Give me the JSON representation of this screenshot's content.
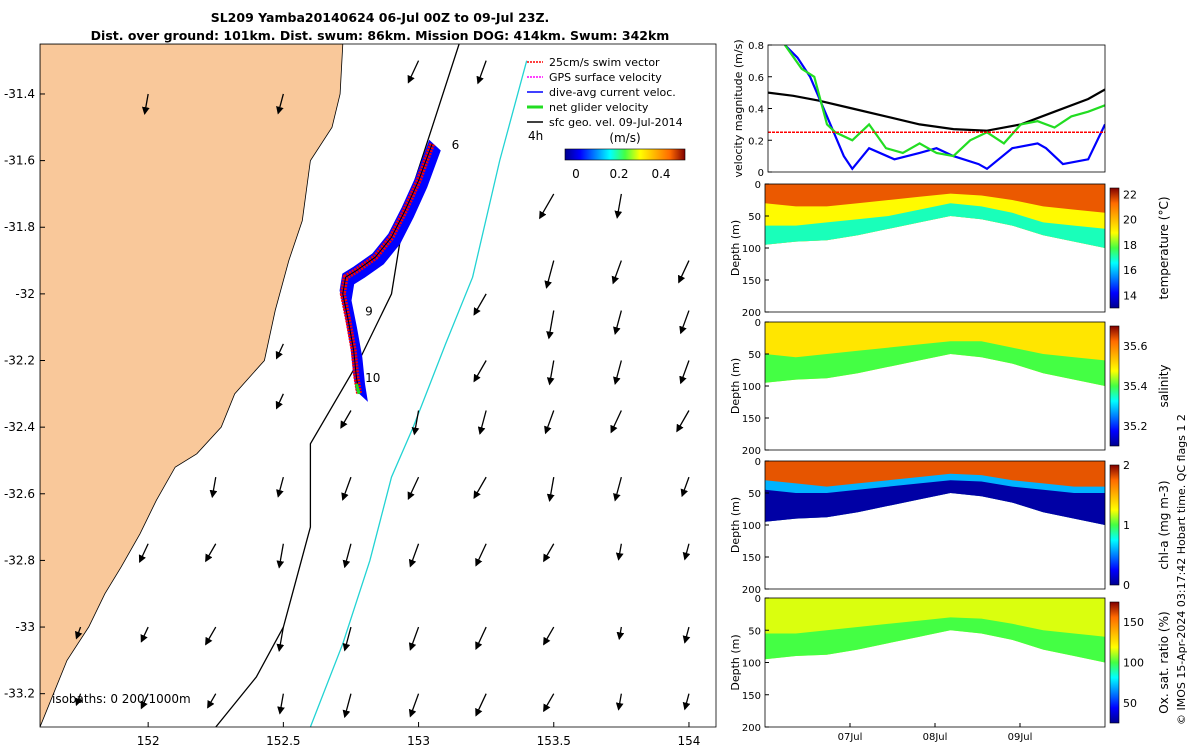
{
  "title_line1": "SL209 Yamba20140624 06-Jul 00Z to 09-Jul 23Z.",
  "title_line2": "Dist. over ground: 101km. Dist. swum: 86km. Mission DOG: 414km. Swum: 342km",
  "footer_text": "© IMOS 15-Apr-2024 03:17:42 Hobart time. QC flags 1  2",
  "colors": {
    "land": "#f9c89a",
    "coast": "#000000",
    "isobath_200": "#000000",
    "isobath_1000": "#22d3d3",
    "swim_vector": "#ff0000",
    "gps_velocity": "#ff00ff",
    "dive_avg": "#0000ff",
    "net_velocity": "#22dd22",
    "geo_velocity": "#000000"
  },
  "map": {
    "legend": [
      {
        "label": "25cm/s swim vector",
        "color": "#ff0000"
      },
      {
        "label": "GPS surface velocity",
        "color": "#ff00ff"
      },
      {
        "label": "dive-avg current veloc.",
        "color": "#0000ff"
      },
      {
        "label": "net glider velocity",
        "color": "#22dd22"
      },
      {
        "label": "sfc geo. vel. 09-Jul-2014",
        "color": "#000000"
      }
    ],
    "colorbar": {
      "label": "(m/s)",
      "ticks": [
        "0",
        "0.2",
        "0.4"
      ]
    },
    "isobath_text": "isobaths: 0   200  1000m",
    "day_labels": [
      {
        "label": "6",
        "lon": 153.1,
        "lat": -31.55
      },
      {
        "label": "9",
        "lon": 152.78,
        "lat": -32.05
      },
      {
        "label": "10",
        "lon": 152.78,
        "lat": -32.25
      }
    ],
    "h_label": "4h"
  },
  "chart_data": [
    {
      "type": "line",
      "name": "track-map",
      "xlim": [
        151.6,
        154.1
      ],
      "ylim": [
        -33.3,
        -31.25
      ],
      "xticks": [
        152,
        152.5,
        153,
        153.5,
        154
      ],
      "xtick_labels": [
        "152",
        "152.5",
        "153",
        "153.5",
        "154"
      ],
      "yticks": [
        -31.4,
        -31.6,
        -31.8,
        -32,
        -32.2,
        -32.4,
        -32.6,
        -32.8,
        -33,
        -33.2
      ],
      "ytick_labels": [
        "-31.4",
        "-31.6",
        "-31.8",
        "-32",
        "-32.2",
        "-32.4",
        "-32.6",
        "-32.8",
        "-33",
        "-33.2"
      ],
      "glider_track": [
        [
          153.05,
          -31.55
        ],
        [
          153.0,
          -31.66
        ],
        [
          152.95,
          -31.75
        ],
        [
          152.9,
          -31.83
        ],
        [
          152.84,
          -31.89
        ],
        [
          152.77,
          -31.93
        ],
        [
          152.73,
          -31.95
        ],
        [
          152.72,
          -32.0
        ],
        [
          152.74,
          -32.08
        ],
        [
          152.76,
          -32.17
        ],
        [
          152.77,
          -32.25
        ],
        [
          152.78,
          -32.3
        ]
      ],
      "coastline": [
        [
          152.72,
          -31.25
        ],
        [
          152.71,
          -31.4
        ],
        [
          152.68,
          -31.5
        ],
        [
          152.6,
          -31.6
        ],
        [
          152.57,
          -31.78
        ],
        [
          152.52,
          -31.9
        ],
        [
          152.47,
          -32.05
        ],
        [
          152.43,
          -32.2
        ],
        [
          152.32,
          -32.3
        ],
        [
          152.27,
          -32.4
        ],
        [
          152.18,
          -32.48
        ],
        [
          152.1,
          -32.52
        ],
        [
          152.03,
          -32.62
        ],
        [
          151.97,
          -32.72
        ],
        [
          151.9,
          -32.82
        ],
        [
          151.84,
          -32.9
        ],
        [
          151.78,
          -33.0
        ],
        [
          151.7,
          -33.1
        ],
        [
          151.65,
          -33.2
        ],
        [
          151.6,
          -33.3
        ]
      ],
      "isobath_200": [
        [
          153.15,
          -31.25
        ],
        [
          153.05,
          -31.5
        ],
        [
          152.95,
          -31.75
        ],
        [
          152.9,
          -32.0
        ],
        [
          152.78,
          -32.2
        ],
        [
          152.6,
          -32.45
        ],
        [
          152.6,
          -32.7
        ],
        [
          152.55,
          -32.85
        ],
        [
          152.5,
          -33.0
        ],
        [
          152.4,
          -33.15
        ],
        [
          152.25,
          -33.3
        ]
      ],
      "isobath_1000": [
        [
          153.4,
          -31.3
        ],
        [
          153.3,
          -31.6
        ],
        [
          153.2,
          -31.95
        ],
        [
          153.1,
          -32.15
        ],
        [
          152.98,
          -32.4
        ],
        [
          152.9,
          -32.55
        ],
        [
          152.82,
          -32.8
        ],
        [
          152.72,
          -33.05
        ],
        [
          152.6,
          -33.3
        ]
      ],
      "geo_vectors": [
        [
          152.0,
          -31.4,
          0.5
        ],
        [
          152.5,
          -31.4,
          0.5
        ],
        [
          153.25,
          -31.3,
          0.6
        ],
        [
          153.0,
          -31.3,
          0.6
        ],
        [
          153.5,
          -31.7,
          0.7
        ],
        [
          153.75,
          -31.7,
          0.6
        ],
        [
          153.5,
          -31.9,
          0.7
        ],
        [
          153.75,
          -31.9,
          0.6
        ],
        [
          154.0,
          -31.9,
          0.6
        ],
        [
          153.25,
          -32.0,
          0.6
        ],
        [
          153.5,
          -32.05,
          0.7
        ],
        [
          153.75,
          -32.05,
          0.6
        ],
        [
          154.0,
          -32.05,
          0.6
        ],
        [
          152.5,
          -32.15,
          0.4
        ],
        [
          153.25,
          -32.2,
          0.6
        ],
        [
          153.5,
          -32.2,
          0.6
        ],
        [
          153.75,
          -32.2,
          0.6
        ],
        [
          154.0,
          -32.2,
          0.6
        ],
        [
          152.5,
          -32.3,
          0.4
        ],
        [
          152.75,
          -32.35,
          0.5
        ],
        [
          153.0,
          -32.35,
          0.6
        ],
        [
          153.25,
          -32.35,
          0.6
        ],
        [
          153.5,
          -32.35,
          0.6
        ],
        [
          153.75,
          -32.35,
          0.6
        ],
        [
          154.0,
          -32.35,
          0.6
        ],
        [
          152.25,
          -32.55,
          0.5
        ],
        [
          152.5,
          -32.55,
          0.5
        ],
        [
          152.75,
          -32.55,
          0.6
        ],
        [
          153.0,
          -32.55,
          0.6
        ],
        [
          153.25,
          -32.55,
          0.6
        ],
        [
          153.5,
          -32.55,
          0.6
        ],
        [
          153.75,
          -32.55,
          0.6
        ],
        [
          154.0,
          -32.55,
          0.5
        ],
        [
          152.0,
          -32.75,
          0.5
        ],
        [
          152.25,
          -32.75,
          0.5
        ],
        [
          152.5,
          -32.75,
          0.6
        ],
        [
          152.75,
          -32.75,
          0.6
        ],
        [
          153.0,
          -32.75,
          0.6
        ],
        [
          153.25,
          -32.75,
          0.6
        ],
        [
          153.5,
          -32.75,
          0.5
        ],
        [
          153.75,
          -32.75,
          0.4
        ],
        [
          154.0,
          -32.75,
          0.4
        ],
        [
          151.75,
          -33.0,
          0.3
        ],
        [
          152.0,
          -33.0,
          0.4
        ],
        [
          152.25,
          -33.0,
          0.5
        ],
        [
          152.5,
          -33.0,
          0.6
        ],
        [
          152.75,
          -33.0,
          0.6
        ],
        [
          153.0,
          -33.0,
          0.6
        ],
        [
          153.25,
          -33.0,
          0.6
        ],
        [
          153.5,
          -33.0,
          0.5
        ],
        [
          153.75,
          -33.0,
          0.3
        ],
        [
          154.0,
          -33.0,
          0.4
        ],
        [
          151.75,
          -33.2,
          0.3
        ],
        [
          152.0,
          -33.2,
          0.4
        ],
        [
          152.25,
          -33.2,
          0.4
        ],
        [
          152.5,
          -33.2,
          0.5
        ],
        [
          152.75,
          -33.2,
          0.6
        ],
        [
          153.0,
          -33.2,
          0.6
        ],
        [
          153.25,
          -33.2,
          0.6
        ],
        [
          153.5,
          -33.2,
          0.5
        ],
        [
          153.75,
          -33.2,
          0.4
        ],
        [
          154.0,
          -33.2,
          0.4
        ]
      ]
    },
    {
      "type": "line",
      "name": "velocity-magnitude",
      "ylabel": "velocity magnitude (m/s)",
      "ylim": [
        0,
        0.8
      ],
      "yticks": [
        0,
        0.2,
        0.4,
        0.6,
        0.8
      ],
      "ytick_labels": [
        "0",
        "0.2",
        "0.4",
        "0.6",
        "0.8"
      ],
      "xlim": [
        0,
        4
      ],
      "series": [
        {
          "name": "sfc geo. vel.",
          "color": "#000000",
          "x": [
            0,
            0.3,
            0.6,
            1.0,
            1.4,
            1.8,
            2.2,
            2.6,
            3.0,
            3.4,
            3.8,
            4.0
          ],
          "y": [
            0.5,
            0.48,
            0.45,
            0.4,
            0.35,
            0.3,
            0.27,
            0.26,
            0.3,
            0.38,
            0.46,
            0.52
          ]
        },
        {
          "name": "dive-avg current veloc.",
          "color": "#0000ff",
          "x": [
            0.2,
            0.35,
            0.5,
            0.7,
            0.9,
            1.0,
            1.2,
            1.5,
            1.8,
            2.0,
            2.2,
            2.5,
            2.6,
            2.9,
            3.2,
            3.3,
            3.5,
            3.8,
            4.0
          ],
          "y": [
            0.8,
            0.72,
            0.6,
            0.35,
            0.1,
            0.02,
            0.15,
            0.08,
            0.12,
            0.15,
            0.1,
            0.05,
            0.02,
            0.15,
            0.18,
            0.15,
            0.05,
            0.08,
            0.3
          ]
        },
        {
          "name": "net glider velocity",
          "color": "#22dd22",
          "x": [
            0.2,
            0.4,
            0.55,
            0.7,
            0.8,
            1.0,
            1.2,
            1.4,
            1.6,
            1.8,
            2.0,
            2.2,
            2.4,
            2.6,
            2.8,
            3.0,
            3.2,
            3.4,
            3.6,
            3.8,
            4.0
          ],
          "y": [
            0.8,
            0.65,
            0.6,
            0.3,
            0.25,
            0.2,
            0.3,
            0.15,
            0.12,
            0.18,
            0.12,
            0.1,
            0.2,
            0.25,
            0.18,
            0.3,
            0.32,
            0.28,
            0.35,
            0.38,
            0.42
          ]
        },
        {
          "name": "25cm/s swim vector",
          "color": "#ff0000",
          "x": [
            0,
            4
          ],
          "y": [
            0.25,
            0.25
          ]
        }
      ]
    },
    {
      "type": "heatmap",
      "name": "temperature",
      "ylabel": "Depth (m)",
      "clabel": "temperature (°C)",
      "ylim": [
        0,
        200
      ],
      "yticks": [
        0,
        50,
        100,
        150,
        200
      ],
      "clim": [
        13,
        22.5
      ],
      "cticks": [
        "14",
        "16",
        "18",
        "20",
        "22"
      ],
      "bottom_depth": [
        95,
        90,
        88,
        80,
        70,
        60,
        50,
        55,
        65,
        80,
        90,
        100
      ],
      "layers": [
        {
          "depth_top": [
            0,
            0,
            0,
            0,
            0,
            0,
            0,
            0,
            0,
            0,
            0,
            0
          ],
          "value": 21.5
        },
        {
          "depth_top": [
            30,
            35,
            35,
            30,
            25,
            20,
            15,
            18,
            25,
            35,
            40,
            45
          ],
          "value": 19
        },
        {
          "depth_top": [
            65,
            65,
            60,
            55,
            50,
            40,
            30,
            35,
            45,
            60,
            65,
            70
          ],
          "value": 17
        }
      ]
    },
    {
      "type": "heatmap",
      "name": "salinity",
      "ylabel": "Depth (m)",
      "clabel": "salinity",
      "ylim": [
        0,
        200
      ],
      "yticks": [
        0,
        50,
        100,
        150,
        200
      ],
      "clim": [
        35.1,
        35.7
      ],
      "cticks": [
        "35.2",
        "35.4",
        "35.6"
      ],
      "bottom_depth": [
        95,
        90,
        88,
        80,
        70,
        60,
        50,
        55,
        65,
        80,
        90,
        100
      ],
      "layers": [
        {
          "depth_top": [
            0,
            0,
            0,
            0,
            0,
            0,
            0,
            0,
            0,
            0,
            0,
            0
          ],
          "value": 35.5
        },
        {
          "depth_top": [
            50,
            55,
            50,
            45,
            40,
            35,
            30,
            30,
            40,
            50,
            55,
            60
          ],
          "value": 35.4
        }
      ]
    },
    {
      "type": "heatmap",
      "name": "chl-a",
      "ylabel": "Depth (m)",
      "clabel": "chl-a (mg m-3)",
      "ylim": [
        0,
        200
      ],
      "yticks": [
        0,
        50,
        100,
        150,
        200
      ],
      "clim": [
        0,
        2
      ],
      "cticks": [
        "0",
        "1",
        "2"
      ],
      "bottom_depth": [
        95,
        90,
        88,
        80,
        70,
        60,
        50,
        55,
        65,
        80,
        90,
        100
      ],
      "layers": [
        {
          "depth_top": [
            0,
            0,
            0,
            0,
            0,
            0,
            0,
            0,
            0,
            0,
            0,
            0
          ],
          "value": 1.8
        },
        {
          "depth_top": [
            30,
            35,
            40,
            35,
            30,
            25,
            20,
            22,
            30,
            35,
            40,
            40
          ],
          "value": 0.6
        },
        {
          "depth_top": [
            45,
            50,
            50,
            45,
            40,
            35,
            30,
            32,
            40,
            45,
            50,
            50
          ],
          "value": 0.05
        }
      ]
    },
    {
      "type": "heatmap",
      "name": "oxygen",
      "ylabel": "Depth (m)",
      "clabel": "Ox. sat. ratio (%)",
      "ylim": [
        0,
        200
      ],
      "yticks": [
        0,
        50,
        100,
        150,
        200
      ],
      "clim": [
        25,
        175
      ],
      "cticks": [
        "50",
        "100",
        "150"
      ],
      "xtick_labels": [
        "07Jul",
        "08Jul",
        "09Jul"
      ],
      "xticks": [
        1,
        2,
        3
      ],
      "xlim": [
        0,
        4
      ],
      "bottom_depth": [
        95,
        90,
        88,
        80,
        70,
        60,
        50,
        55,
        65,
        80,
        90,
        100
      ],
      "layers": [
        {
          "depth_top": [
            0,
            0,
            0,
            0,
            0,
            0,
            0,
            0,
            0,
            0,
            0,
            0
          ],
          "value": 115
        },
        {
          "depth_top": [
            55,
            55,
            50,
            45,
            40,
            35,
            30,
            32,
            40,
            50,
            55,
            60
          ],
          "value": 100
        }
      ]
    }
  ]
}
